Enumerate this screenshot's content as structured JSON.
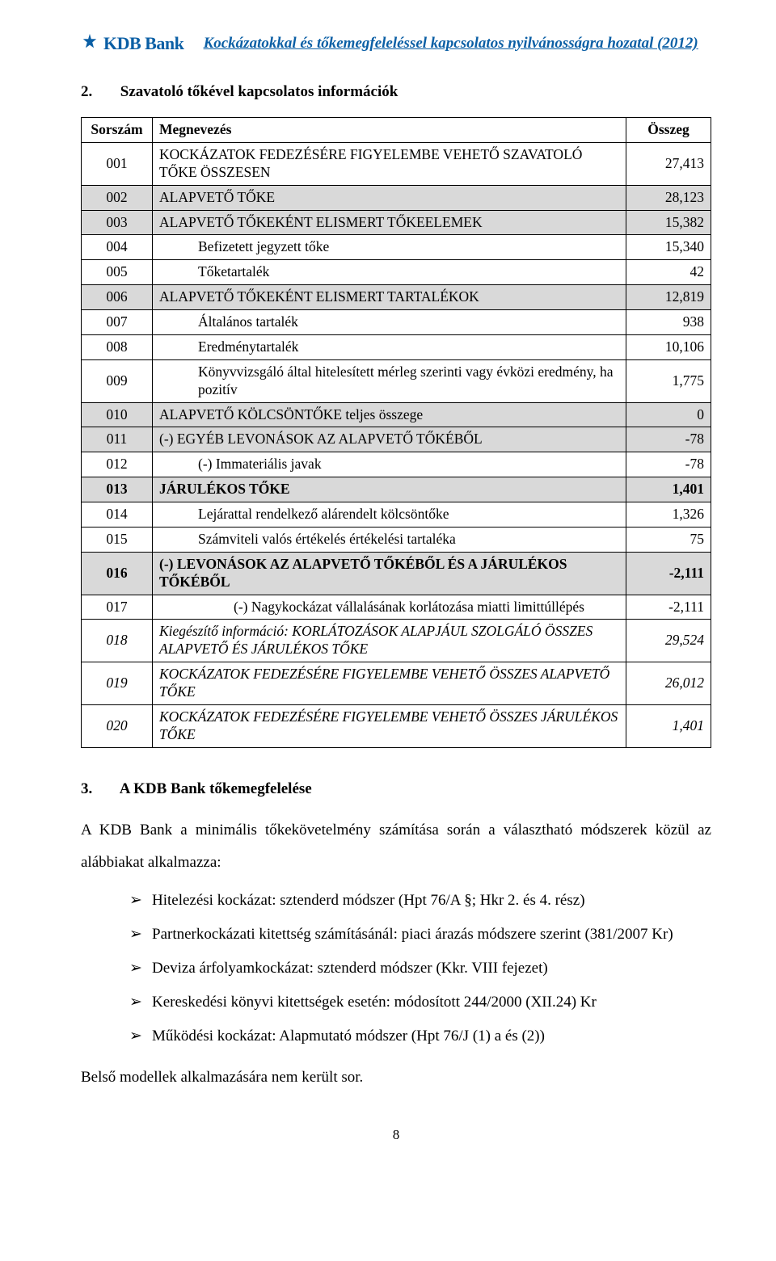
{
  "colors": {
    "brand": "#0b5fa5",
    "shade": "#d9d9d9",
    "text": "#000000",
    "bg": "#ffffff"
  },
  "header": {
    "logo_text": "KDB Bank",
    "title": "Kockázatokkal és tőkemegfeleléssel kapcsolatos nyilvánosságra hozatal (2012)"
  },
  "section2": {
    "num": "2.",
    "title": "Szavatoló tőkével kapcsolatos információk"
  },
  "table": {
    "columns": [
      "Sorszám",
      "Megnevezés",
      "Összeg"
    ],
    "col_align": [
      "center",
      "left",
      "right"
    ],
    "rows": [
      {
        "n": "001",
        "m": "KOCKÁZATOK FEDEZÉSÉRE FIGYELEMBE VEHETŐ SZAVATOLÓ TŐKE ÖSSZESEN",
        "v": "27,413",
        "shade": false,
        "bold": false,
        "italic": false,
        "indent": 0
      },
      {
        "n": "002",
        "m": "ALAPVETŐ TŐKE",
        "v": "28,123",
        "shade": true,
        "bold": false,
        "italic": false,
        "indent": 0
      },
      {
        "n": "003",
        "m": "ALAPVETŐ TŐKEKÉNT ELISMERT TŐKEELEMEK",
        "v": "15,382",
        "shade": true,
        "bold": false,
        "italic": false,
        "indent": 0
      },
      {
        "n": "004",
        "m": "Befizetett jegyzett tőke",
        "v": "15,340",
        "shade": false,
        "bold": false,
        "italic": false,
        "indent": 1
      },
      {
        "n": "005",
        "m": "Tőketartalék",
        "v": "42",
        "shade": false,
        "bold": false,
        "italic": false,
        "indent": 1
      },
      {
        "n": "006",
        "m": "ALAPVETŐ TŐKEKÉNT ELISMERT TARTALÉKOK",
        "v": "12,819",
        "shade": true,
        "bold": false,
        "italic": false,
        "indent": 0
      },
      {
        "n": "007",
        "m": "Általános tartalék",
        "v": "938",
        "shade": false,
        "bold": false,
        "italic": false,
        "indent": 1
      },
      {
        "n": "008",
        "m": "Eredménytartalék",
        "v": "10,106",
        "shade": false,
        "bold": false,
        "italic": false,
        "indent": 1
      },
      {
        "n": "009",
        "m": "Könyvvizsgáló által hitelesített mérleg szerinti vagy évközi eredmény, ha pozitív",
        "v": "1,775",
        "shade": false,
        "bold": false,
        "italic": false,
        "indent": 1
      },
      {
        "n": "010",
        "m": "ALAPVETŐ KÖLCSÖNTŐKE teljes összege",
        "v": "0",
        "shade": true,
        "bold": false,
        "italic": false,
        "indent": 0
      },
      {
        "n": "011",
        "m": "(-) EGYÉB LEVONÁSOK AZ ALAPVETŐ TŐKÉBŐL",
        "v": "-78",
        "shade": true,
        "bold": false,
        "italic": false,
        "indent": 0
      },
      {
        "n": "012",
        "m": "(-) Immateriális javak",
        "v": "-78",
        "shade": false,
        "bold": false,
        "italic": false,
        "indent": 1
      },
      {
        "n": "013",
        "m": "JÁRULÉKOS TŐKE",
        "v": "1,401",
        "shade": true,
        "bold": true,
        "italic": false,
        "indent": 0
      },
      {
        "n": "014",
        "m": "Lejárattal rendelkező alárendelt kölcsöntőke",
        "v": "1,326",
        "shade": false,
        "bold": false,
        "italic": false,
        "indent": 1
      },
      {
        "n": "015",
        "m": "Számviteli valós értékelés értékelési tartaléka",
        "v": "75",
        "shade": false,
        "bold": false,
        "italic": false,
        "indent": 1
      },
      {
        "n": "016",
        "m": "(-) LEVONÁSOK AZ ALAPVETŐ TŐKÉBŐL ÉS A JÁRULÉKOS TŐKÉBŐL",
        "v": "-2,111",
        "shade": true,
        "bold": true,
        "italic": false,
        "indent": 0
      },
      {
        "n": "017",
        "m": "(-) Nagykockázat vállalásának korlátozása miatti limittúllépés",
        "v": "-2,111",
        "shade": false,
        "bold": false,
        "italic": false,
        "indent": 2
      },
      {
        "n": "018",
        "m": "Kiegészítő információ: KORLÁTOZÁSOK ALAPJÁUL SZOLGÁLÓ ÖSSZES ALAPVETŐ ÉS JÁRULÉKOS TŐKE",
        "v": "29,524",
        "shade": false,
        "bold": false,
        "italic": true,
        "indent": 0
      },
      {
        "n": "019",
        "m": "KOCKÁZATOK FEDEZÉSÉRE FIGYELEMBE VEHETŐ ÖSSZES ALAPVETŐ TŐKE",
        "v": "26,012",
        "shade": false,
        "bold": false,
        "italic": true,
        "indent": 0
      },
      {
        "n": "020",
        "m": "KOCKÁZATOK FEDEZÉSÉRE FIGYELEMBE VEHETŐ ÖSSZES JÁRULÉKOS TŐKE",
        "v": "1,401",
        "shade": false,
        "bold": false,
        "italic": true,
        "indent": 0
      }
    ]
  },
  "section3": {
    "num": "3.",
    "title": "A KDB Bank tőkemegfelelése",
    "intro": "A KDB Bank a minimális tőkekövetelmény számítása során a választható módszerek közül az alábbiakat alkalmazza:",
    "items": [
      "Hitelezési kockázat: sztenderd módszer (Hpt 76/A §; Hkr 2. és 4. rész)",
      "Partnerkockázati kitettség számításánál: piaci árazás módszere szerint (381/2007 Kr)",
      "Deviza árfolyamkockázat: sztenderd módszer (Kkr. VIII fejezet)",
      "Kereskedési könyvi kitettségek esetén: módosított 244/2000 (XII.24) Kr",
      "Működési kockázat: Alapmutató módszer (Hpt 76/J (1) a és (2))"
    ],
    "closing": "Belső modellek alkalmazására nem került sor."
  },
  "page_number": "8"
}
